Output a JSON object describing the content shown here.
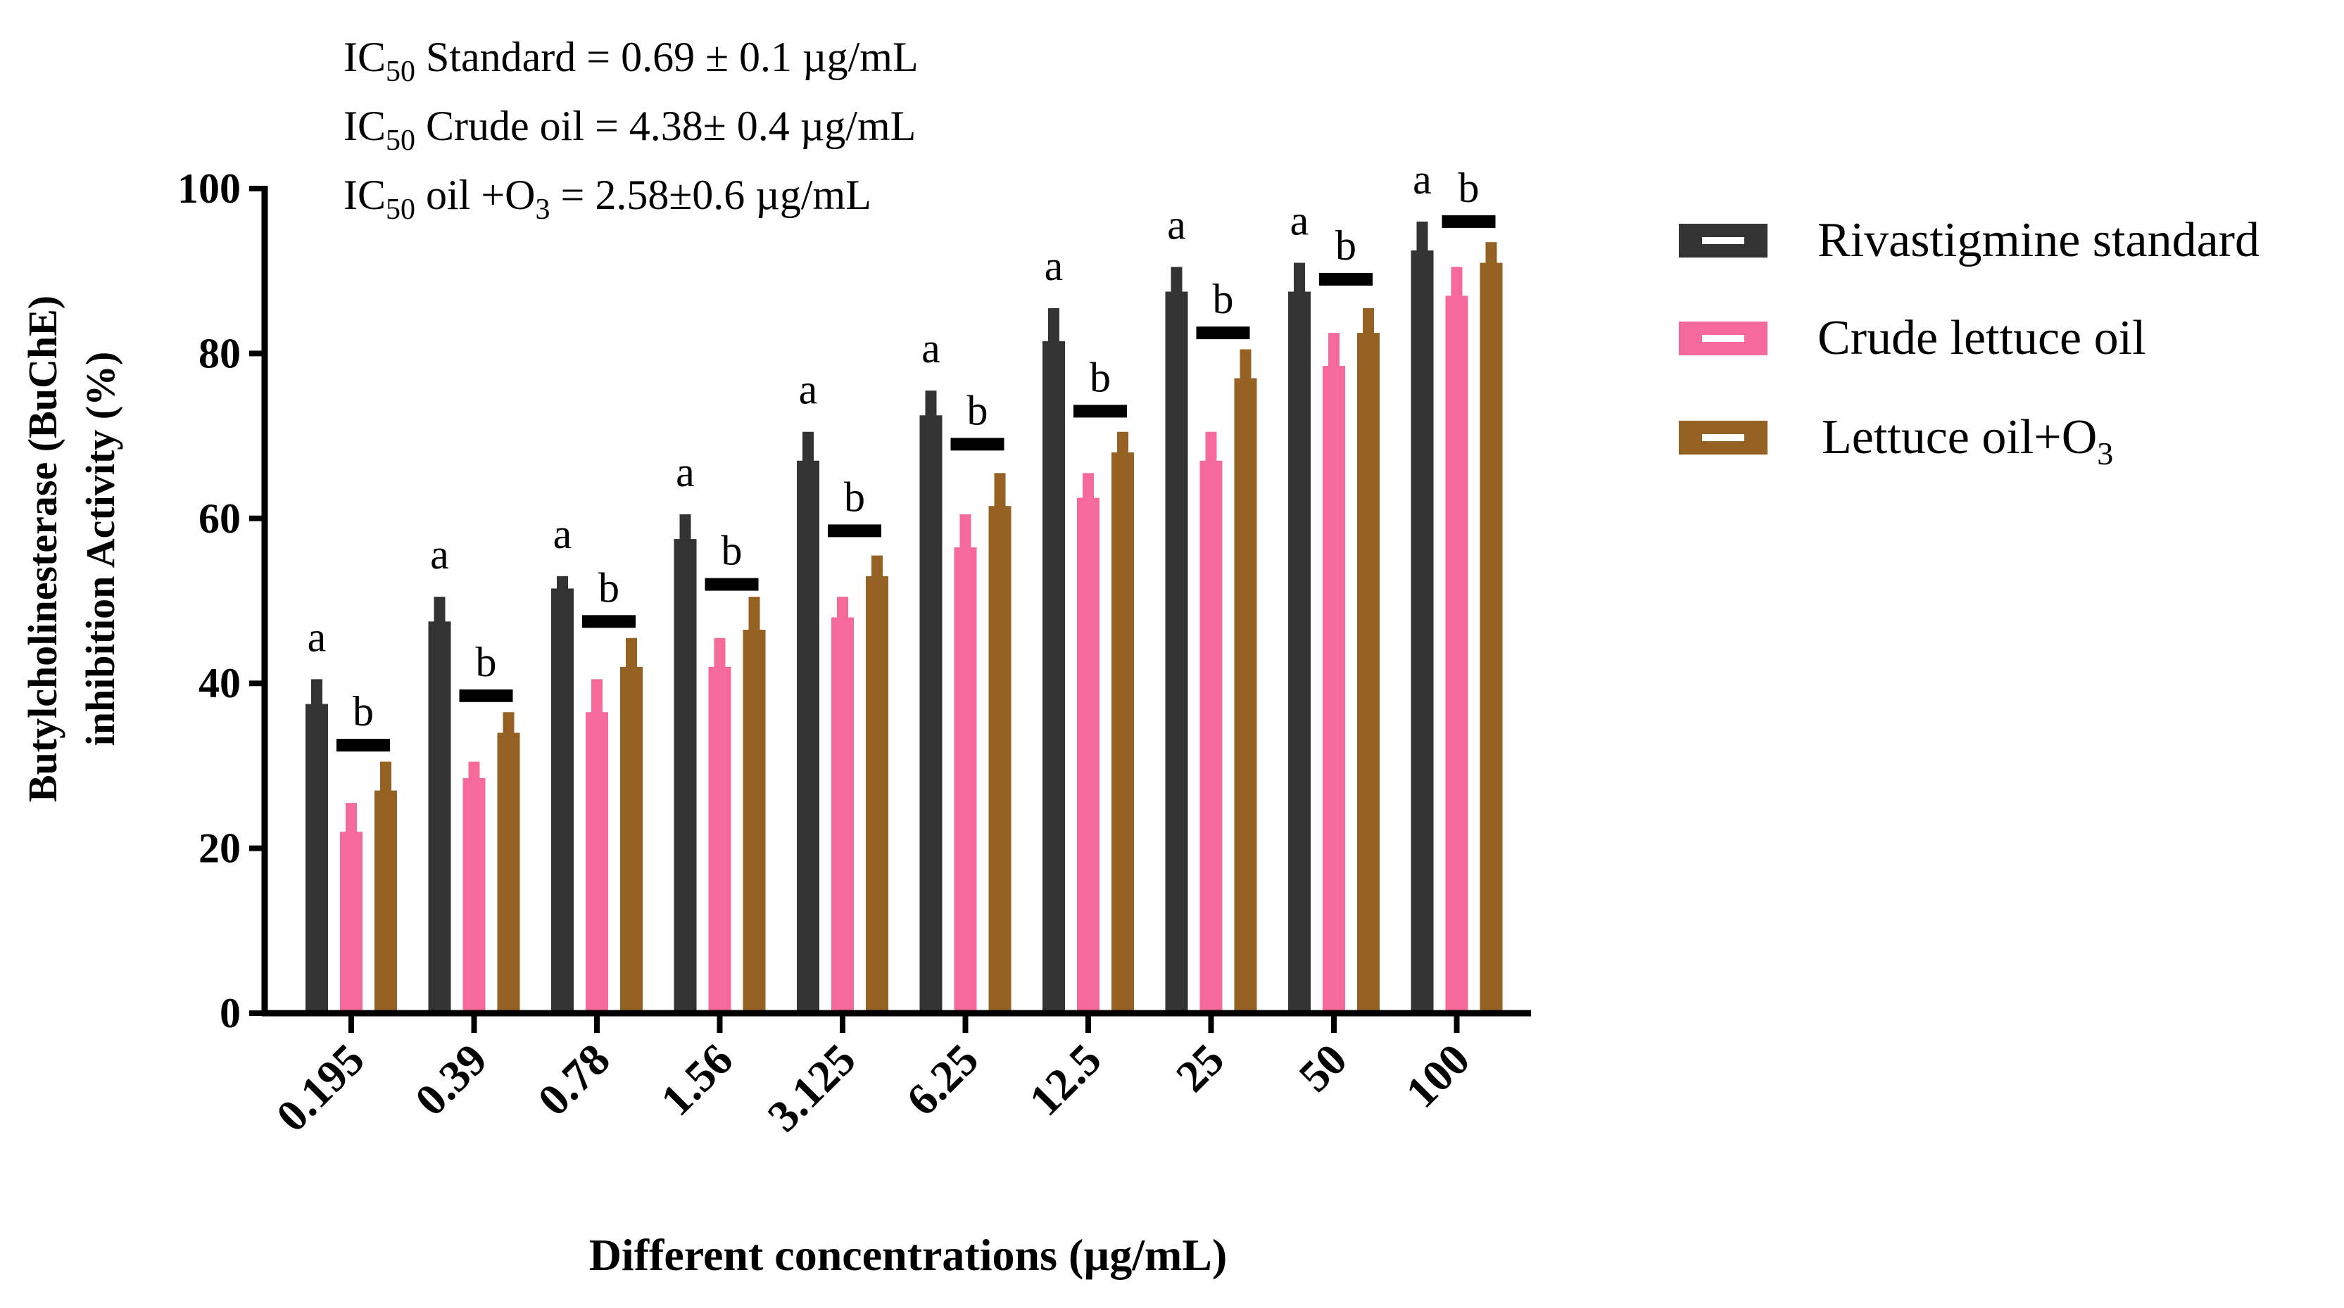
{
  "chart_data": {
    "type": "bar",
    "title": "",
    "xlabel": "Different concentrations (µg/mL)",
    "ylabel_line1": "Butylcholinesterase (BuChE)",
    "ylabel_line2": "inhibition Activity (%)",
    "ylim": [
      0,
      100
    ],
    "yticks": [
      "0",
      "20",
      "40",
      "60",
      "80",
      "100"
    ],
    "ytick_values": [
      0,
      20,
      40,
      60,
      80,
      100
    ],
    "categories": [
      "0.195",
      "0.39",
      "0.78",
      "1.56",
      "3.125",
      "6.25",
      "12.5",
      "25",
      "50",
      "100"
    ],
    "series": [
      {
        "name": "Rivastigmine standard",
        "color": "#333333",
        "values": [
          37.5,
          47.5,
          51.5,
          57.5,
          67,
          72.5,
          81.5,
          87.5,
          87.5,
          92.5
        ],
        "errors": [
          3,
          3,
          1.5,
          3,
          3.5,
          3,
          4,
          3,
          3.5,
          3.5
        ]
      },
      {
        "name": "Crude lettuce oil",
        "color": "#f56a9a",
        "values": [
          22,
          28.5,
          36.5,
          42,
          48,
          56.5,
          62.5,
          67,
          78.5,
          87
        ],
        "errors": [
          3.5,
          2,
          4,
          3.5,
          2.5,
          4,
          3,
          3.5,
          4,
          3.5
        ]
      },
      {
        "name": "Lettuce oil+O",
        "name_sub": "3",
        "color": "#956223",
        "values": [
          27,
          34,
          42,
          46.5,
          53,
          61.5,
          68,
          77,
          82.5,
          91
        ],
        "errors": [
          3.5,
          2.5,
          3.5,
          4,
          2.5,
          4,
          2.5,
          3.5,
          3,
          2.5
        ]
      }
    ],
    "significance": {
      "standard_letters": [
        "a",
        "a",
        "a",
        "a",
        "a",
        "a",
        "a",
        "a",
        "a",
        "a"
      ],
      "pair_letters": [
        "b",
        "b",
        "b",
        "b",
        "b",
        "b",
        "b",
        "b",
        "b",
        "b"
      ],
      "pair_line_values": [
        32.5,
        38.5,
        47.5,
        52,
        58.5,
        69,
        73,
        82.5,
        89,
        96
      ]
    },
    "annotations": {
      "ic50_prefix": "IC",
      "ic50_sub": "50",
      "line1": " Standard = 0.69 ± 0.1 µg/mL",
      "line2": " Crude oil = 4.38± 0.4 µg/mL",
      "line3_a": " oil +O",
      "line3_sub": "3",
      "line3_b": " = 2.58±0.6 µg/mL"
    },
    "legend_position": "right"
  }
}
